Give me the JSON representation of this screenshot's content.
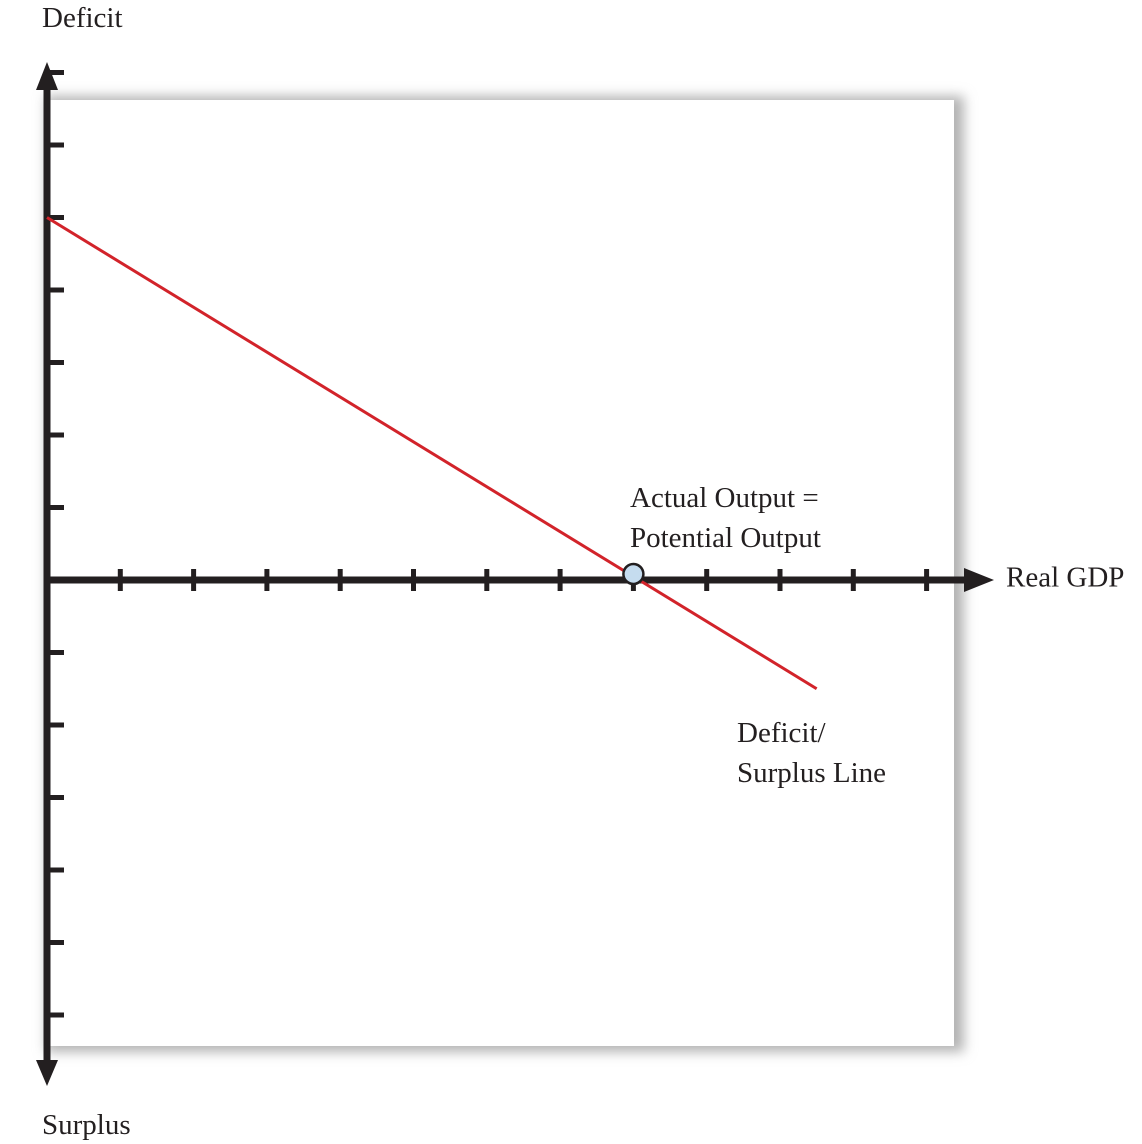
{
  "chart_data": {
    "type": "line",
    "title": "",
    "xlabel": "Real GDP",
    "ylabel_top": "Deficit",
    "ylabel_bottom": "Surplus",
    "x_ticks": 12,
    "y_ticks_above": 7,
    "y_ticks_below": 6,
    "grid": false,
    "series": [
      {
        "name": "Deficit/ Surplus Line",
        "label_lines": [
          "Deficit/",
          "Surplus Line"
        ],
        "color": "#d2232a",
        "x": [
          0,
          10.5
        ],
        "y": [
          5,
          -1.5
        ]
      }
    ],
    "marker": {
      "label_lines": [
        "Actual Output  =",
        "Potential Output"
      ],
      "x": 8,
      "y": 0,
      "fill": "#c5dcef",
      "stroke": "#231f20"
    },
    "colors": {
      "axis": "#231f20",
      "panel_shadow": "#b3b3b3"
    }
  }
}
